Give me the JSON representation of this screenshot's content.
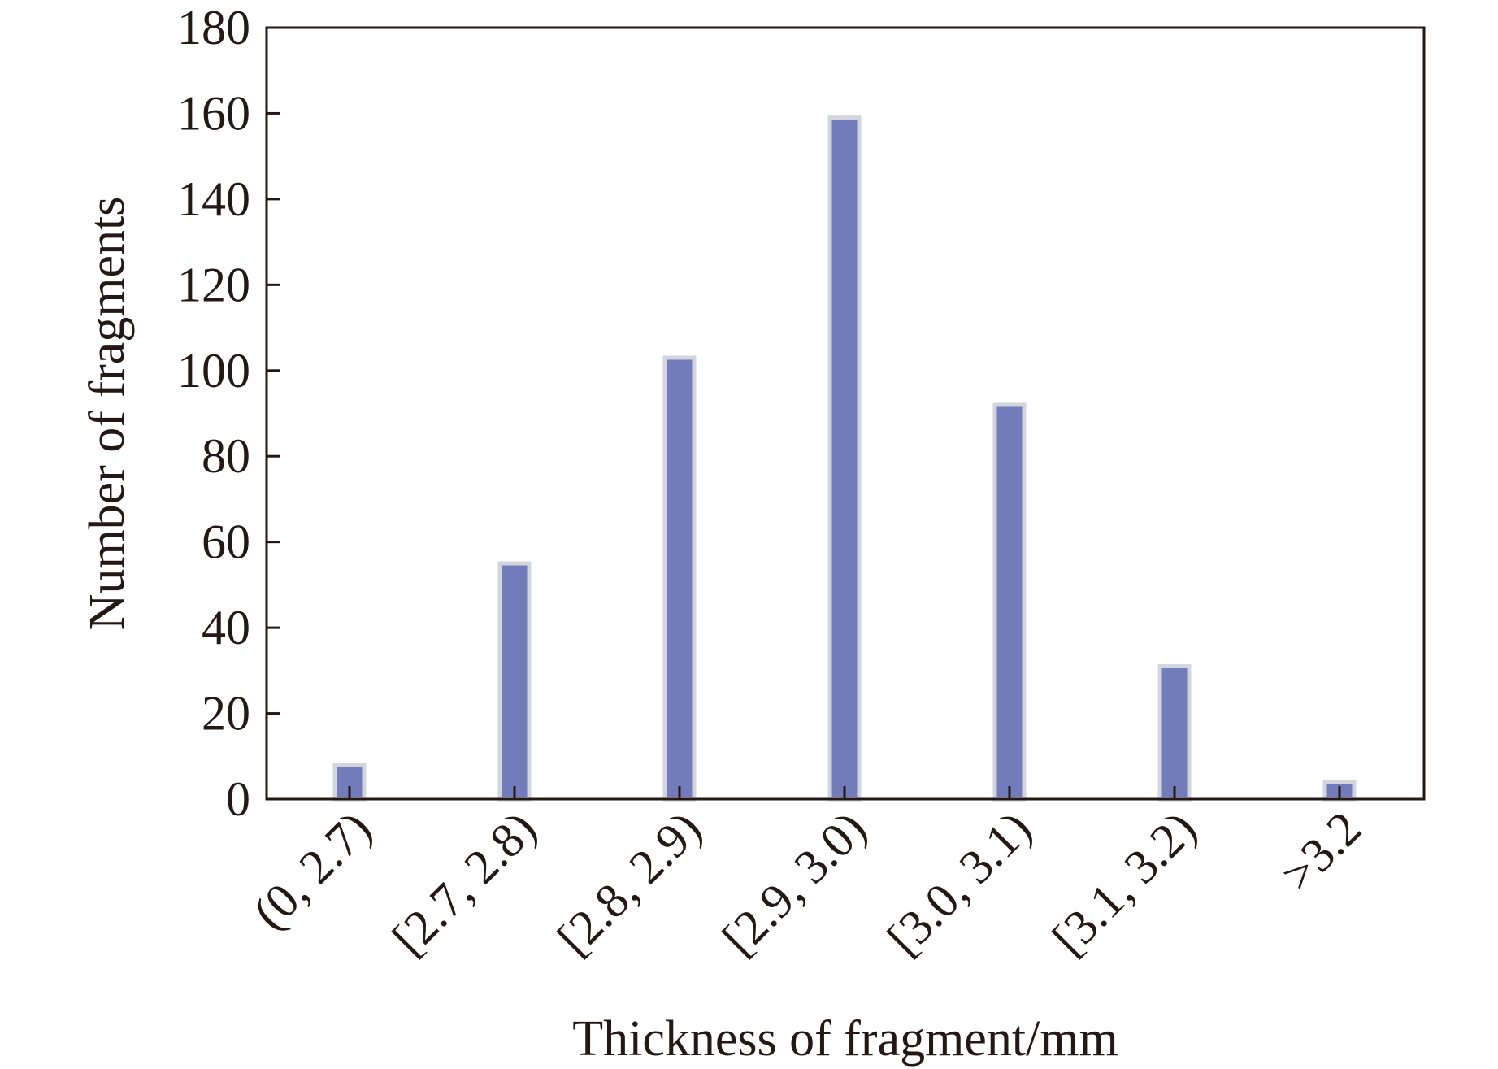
{
  "chart_data": {
    "type": "bar",
    "title": "",
    "xlabel": "Thickness of fragment/mm",
    "ylabel": "Number of fragments",
    "categories": [
      "(0, 2.7)",
      "[2.7, 2.8)",
      "[2.8, 2.9)",
      "[2.9, 3.0)",
      "[3.0, 3.1)",
      "[3.1, 3.2)",
      ">3.2"
    ],
    "values": [
      8,
      55,
      103,
      159,
      92,
      31,
      4
    ],
    "ylim": [
      0,
      180
    ],
    "yticks": [
      "0",
      "20",
      "40",
      "60",
      "80",
      "100",
      "120",
      "140",
      "160",
      "180"
    ],
    "grid": false,
    "legend": "none",
    "colors": {
      "bar_fill": "#727cba",
      "bar_edge": "#d3d5dd",
      "axis": "#231815"
    }
  }
}
